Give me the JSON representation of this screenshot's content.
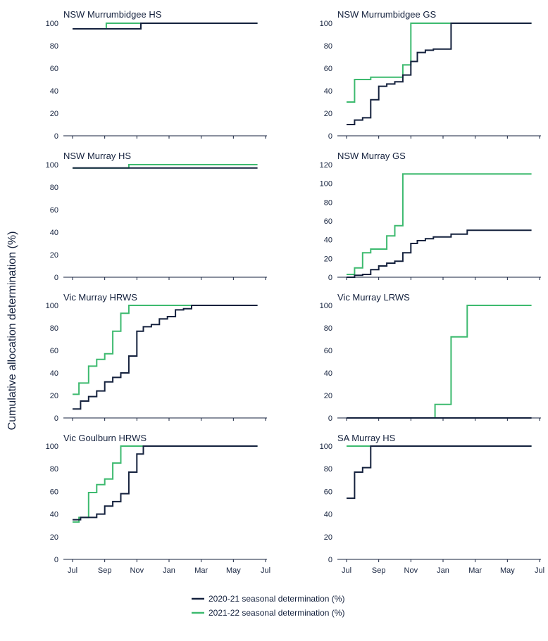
{
  "ylabel": "Cumulative allocation determination (%)",
  "x_tick_labels": [
    "Jul",
    "Sep",
    "Nov",
    "Jan",
    "Mar",
    "May",
    "Jul"
  ],
  "legend": [
    {
      "label": "2020-21 seasonal determination (%)",
      "color": "#14213d"
    },
    {
      "label": "2021-22 seasonal determination (%)",
      "color": "#3dba6f"
    }
  ],
  "colors": {
    "s2020": "#14213d",
    "s2021": "#3dba6f",
    "axis": "#14213d"
  },
  "chart_data": [
    {
      "type": "line",
      "step": true,
      "title": "NSW Murrumbidgee HS",
      "x_range": [
        "Jul",
        "Jul"
      ],
      "ylim": [
        0,
        100
      ],
      "yticks": [
        0,
        20,
        40,
        60,
        80,
        100
      ],
      "show_x_labels": false,
      "series": [
        {
          "name": "2020-21 seasonal determination (%)",
          "points": [
            [
              0,
              95
            ],
            [
              4.25,
              95
            ],
            [
              4.25,
              100
            ],
            [
              11.5,
              100
            ]
          ]
        },
        {
          "name": "2021-22 seasonal determination (%)",
          "points": [
            [
              0,
              95
            ],
            [
              2.1,
              95
            ],
            [
              2.1,
              100
            ],
            [
              5.85,
              100
            ],
            [
              5.85,
              100
            ],
            [
              11.5,
              100
            ]
          ]
        }
      ]
    },
    {
      "type": "line",
      "step": true,
      "title": "NSW Murrumbidgee GS",
      "x_range": [
        "Jul",
        "Jul"
      ],
      "ylim": [
        0,
        100
      ],
      "yticks": [
        0,
        20,
        40,
        60,
        80,
        100
      ],
      "show_x_labels": false,
      "series": [
        {
          "name": "2020-21 seasonal determination (%)",
          "points": [
            [
              0,
              10
            ],
            [
              0.5,
              10
            ],
            [
              0.5,
              14
            ],
            [
              1,
              14
            ],
            [
              1,
              16
            ],
            [
              1.5,
              16
            ],
            [
              1.5,
              32
            ],
            [
              2,
              32
            ],
            [
              2,
              44
            ],
            [
              2.5,
              44
            ],
            [
              2.5,
              46
            ],
            [
              3,
              46
            ],
            [
              3,
              48
            ],
            [
              3.5,
              48
            ],
            [
              3.5,
              54
            ],
            [
              4,
              54
            ],
            [
              4,
              66
            ],
            [
              4.4,
              66
            ],
            [
              4.4,
              74
            ],
            [
              4.9,
              74
            ],
            [
              4.9,
              76
            ],
            [
              5.4,
              76
            ],
            [
              5.4,
              77
            ],
            [
              6.5,
              77
            ],
            [
              6.5,
              100
            ],
            [
              11.5,
              100
            ]
          ]
        },
        {
          "name": "2021-22 seasonal determination (%)",
          "points": [
            [
              0,
              30
            ],
            [
              0.5,
              30
            ],
            [
              0.5,
              50
            ],
            [
              1.5,
              50
            ],
            [
              1.5,
              52
            ],
            [
              3.5,
              52
            ],
            [
              3.5,
              63
            ],
            [
              4,
              63
            ],
            [
              4,
              100
            ],
            [
              11.5,
              100
            ]
          ]
        }
      ]
    },
    {
      "type": "line",
      "step": true,
      "title": "NSW Murray HS",
      "x_range": [
        "Jul",
        "Jul"
      ],
      "ylim": [
        0,
        100
      ],
      "yticks": [
        0,
        20,
        40,
        60,
        80,
        100
      ],
      "show_x_labels": false,
      "series": [
        {
          "name": "2020-21 seasonal determination (%)",
          "points": [
            [
              0,
              97
            ],
            [
              11.5,
              97
            ]
          ]
        },
        {
          "name": "2021-22 seasonal determination (%)",
          "points": [
            [
              0,
              97
            ],
            [
              3.5,
              97
            ],
            [
              3.5,
              100
            ],
            [
              11.5,
              100
            ]
          ]
        }
      ]
    },
    {
      "type": "line",
      "step": true,
      "title": "NSW Murray GS",
      "x_range": [
        "Jul",
        "Jul"
      ],
      "ylim": [
        0,
        120
      ],
      "yticks": [
        0,
        20,
        40,
        60,
        80,
        100,
        120
      ],
      "show_x_labels": false,
      "series": [
        {
          "name": "2020-21 seasonal determination (%)",
          "points": [
            [
              0,
              0
            ],
            [
              0.5,
              0
            ],
            [
              0.5,
              2
            ],
            [
              1,
              2
            ],
            [
              1,
              3
            ],
            [
              1.5,
              3
            ],
            [
              1.5,
              8
            ],
            [
              2,
              8
            ],
            [
              2,
              12
            ],
            [
              2.5,
              12
            ],
            [
              2.5,
              15
            ],
            [
              3,
              15
            ],
            [
              3,
              17
            ],
            [
              3.5,
              17
            ],
            [
              3.5,
              26
            ],
            [
              4,
              26
            ],
            [
              4,
              36
            ],
            [
              4.4,
              36
            ],
            [
              4.4,
              39
            ],
            [
              4.9,
              39
            ],
            [
              4.9,
              41
            ],
            [
              5.4,
              41
            ],
            [
              5.4,
              43
            ],
            [
              6.5,
              43
            ],
            [
              6.5,
              46
            ],
            [
              7.5,
              46
            ],
            [
              7.5,
              50
            ],
            [
              11.5,
              50
            ]
          ]
        },
        {
          "name": "2021-22 seasonal determination (%)",
          "points": [
            [
              0,
              3
            ],
            [
              0.5,
              3
            ],
            [
              0.5,
              10
            ],
            [
              1,
              10
            ],
            [
              1,
              26
            ],
            [
              1.5,
              26
            ],
            [
              1.5,
              30
            ],
            [
              2.5,
              30
            ],
            [
              2.5,
              44
            ],
            [
              3,
              44
            ],
            [
              3,
              55
            ],
            [
              3.5,
              55
            ],
            [
              3.5,
              110
            ],
            [
              11.5,
              110
            ]
          ]
        }
      ]
    },
    {
      "type": "line",
      "step": true,
      "title": "Vic Murray HRWS",
      "x_range": [
        "Jul",
        "Jul"
      ],
      "ylim": [
        0,
        100
      ],
      "yticks": [
        0,
        20,
        40,
        60,
        80,
        100
      ],
      "show_x_labels": false,
      "series": [
        {
          "name": "2020-21 seasonal determination (%)",
          "points": [
            [
              0,
              8
            ],
            [
              0.5,
              8
            ],
            [
              0.5,
              15
            ],
            [
              1,
              15
            ],
            [
              1,
              19
            ],
            [
              1.5,
              19
            ],
            [
              1.5,
              24
            ],
            [
              2,
              24
            ],
            [
              2,
              32
            ],
            [
              2.5,
              32
            ],
            [
              2.5,
              36
            ],
            [
              3,
              36
            ],
            [
              3,
              40
            ],
            [
              3.5,
              40
            ],
            [
              3.5,
              55
            ],
            [
              4,
              55
            ],
            [
              4,
              77
            ],
            [
              4.4,
              77
            ],
            [
              4.4,
              81
            ],
            [
              4.9,
              81
            ],
            [
              4.9,
              83
            ],
            [
              5.4,
              83
            ],
            [
              5.4,
              88
            ],
            [
              5.9,
              88
            ],
            [
              5.9,
              90
            ],
            [
              6.4,
              90
            ],
            [
              6.4,
              96
            ],
            [
              6.9,
              96
            ],
            [
              6.9,
              97
            ],
            [
              7.4,
              97
            ],
            [
              7.4,
              100
            ],
            [
              11.5,
              100
            ]
          ]
        },
        {
          "name": "2021-22 seasonal determination (%)",
          "points": [
            [
              0,
              21
            ],
            [
              0.4,
              21
            ],
            [
              0.4,
              31
            ],
            [
              1,
              31
            ],
            [
              1,
              46
            ],
            [
              1.5,
              46
            ],
            [
              1.5,
              52
            ],
            [
              2,
              52
            ],
            [
              2,
              57
            ],
            [
              2.5,
              57
            ],
            [
              2.5,
              77
            ],
            [
              3,
              77
            ],
            [
              3,
              93
            ],
            [
              3.5,
              93
            ],
            [
              3.5,
              100
            ],
            [
              11.5,
              100
            ]
          ]
        }
      ]
    },
    {
      "type": "line",
      "step": true,
      "title": "Vic Murray LRWS",
      "x_range": [
        "Jul",
        "Jul"
      ],
      "ylim": [
        0,
        100
      ],
      "yticks": [
        0,
        20,
        40,
        60,
        80,
        100
      ],
      "show_x_labels": false,
      "series": [
        {
          "name": "2020-21 seasonal determination (%)",
          "points": [
            [
              0,
              0
            ],
            [
              11.5,
              0
            ]
          ]
        },
        {
          "name": "2021-22 seasonal determination (%)",
          "points": [
            [
              0,
              0
            ],
            [
              5.5,
              0
            ],
            [
              5.5,
              12
            ],
            [
              6.5,
              12
            ],
            [
              6.5,
              72
            ],
            [
              7.5,
              72
            ],
            [
              7.5,
              100
            ],
            [
              11.5,
              100
            ]
          ]
        }
      ]
    },
    {
      "type": "line",
      "step": true,
      "title": "Vic Goulburn HRWS",
      "x_range": [
        "Jul",
        "Jul"
      ],
      "ylim": [
        0,
        100
      ],
      "yticks": [
        0,
        20,
        40,
        60,
        80,
        100
      ],
      "show_x_labels": true,
      "series": [
        {
          "name": "2020-21 seasonal determination (%)",
          "points": [
            [
              0,
              35
            ],
            [
              0.5,
              35
            ],
            [
              0.5,
              37
            ],
            [
              1.5,
              37
            ],
            [
              1.5,
              40
            ],
            [
              2,
              40
            ],
            [
              2,
              47
            ],
            [
              2.5,
              47
            ],
            [
              2.5,
              51
            ],
            [
              3,
              51
            ],
            [
              3,
              58
            ],
            [
              3.5,
              58
            ],
            [
              3.5,
              77
            ],
            [
              4,
              77
            ],
            [
              4,
              93
            ],
            [
              4.4,
              93
            ],
            [
              4.4,
              100
            ],
            [
              11.5,
              100
            ]
          ]
        },
        {
          "name": "2021-22 seasonal determination (%)",
          "points": [
            [
              0,
              33
            ],
            [
              0.4,
              33
            ],
            [
              0.4,
              37
            ],
            [
              1,
              37
            ],
            [
              1,
              59
            ],
            [
              1.5,
              59
            ],
            [
              1.5,
              66
            ],
            [
              2,
              66
            ],
            [
              2,
              71
            ],
            [
              2.5,
              71
            ],
            [
              2.5,
              85
            ],
            [
              3,
              85
            ],
            [
              3,
              100
            ],
            [
              11.5,
              100
            ]
          ]
        }
      ]
    },
    {
      "type": "line",
      "step": true,
      "title": "SA Murray HS",
      "x_range": [
        "Jul",
        "Jul"
      ],
      "ylim": [
        0,
        100
      ],
      "yticks": [
        0,
        20,
        40,
        60,
        80,
        100
      ],
      "show_x_labels": true,
      "series": [
        {
          "name": "2020-21 seasonal determination (%)",
          "points": [
            [
              0,
              54
            ],
            [
              0.5,
              54
            ],
            [
              0.5,
              77
            ],
            [
              1,
              77
            ],
            [
              1,
              81
            ],
            [
              1.5,
              81
            ],
            [
              1.5,
              100
            ],
            [
              11.5,
              100
            ]
          ]
        },
        {
          "name": "2021-22 seasonal determination (%)",
          "points": [
            [
              0,
              100
            ],
            [
              11.5,
              100
            ]
          ]
        }
      ]
    }
  ]
}
